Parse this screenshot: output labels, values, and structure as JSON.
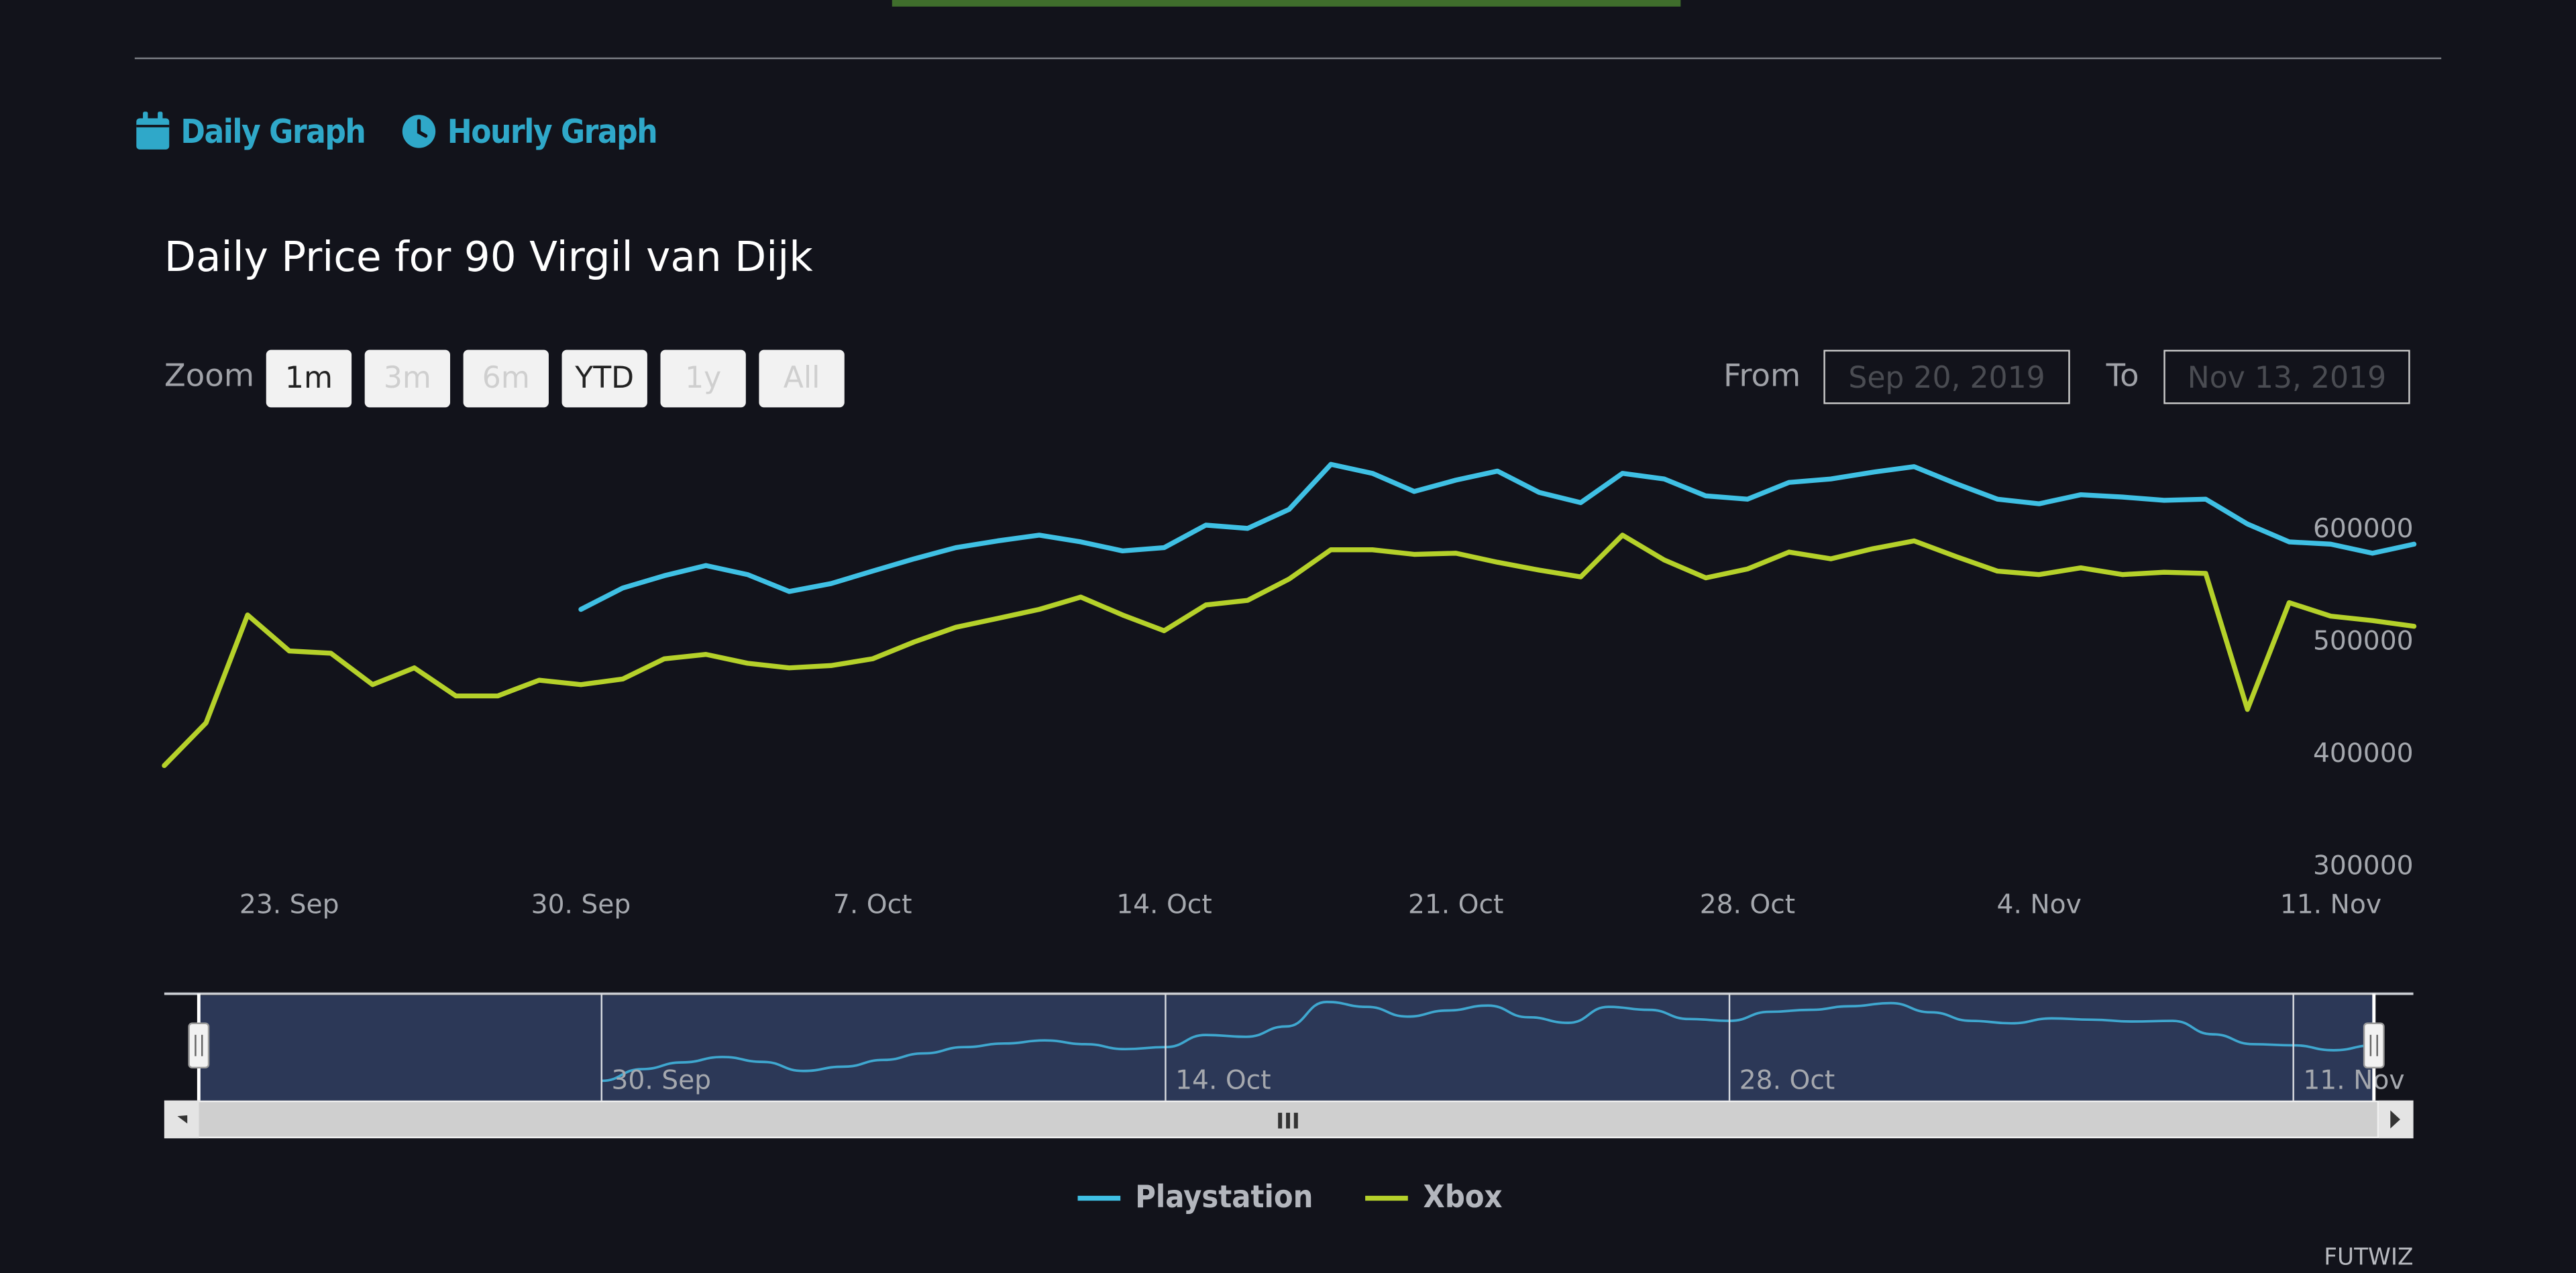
{
  "tabs": [
    {
      "label": "Daily Graph",
      "icon": "calendar-icon"
    },
    {
      "label": "Hourly Graph",
      "icon": "clock-icon"
    }
  ],
  "zoom": {
    "label": "Zoom",
    "buttons": [
      {
        "label": "1m",
        "enabled": true
      },
      {
        "label": "3m",
        "enabled": false
      },
      {
        "label": "6m",
        "enabled": false
      },
      {
        "label": "YTD",
        "enabled": true
      },
      {
        "label": "1y",
        "enabled": false
      },
      {
        "label": "All",
        "enabled": false
      }
    ]
  },
  "range": {
    "from_label": "From",
    "from_value": "Sep 20, 2019",
    "to_label": "To",
    "to_value": "Nov 13, 2019"
  },
  "navigator": {
    "labels": [
      "30. Sep",
      "14. Oct",
      "28. Oct",
      "11. Nov"
    ],
    "scroll_grip": "III"
  },
  "credit": "FUTWIZ",
  "colors": {
    "background": "#12131b",
    "accent": "#2fa8c9",
    "playstation": "#3fc0e4",
    "xbox": "#b5d12a",
    "navigator_fill": "#2c3857"
  },
  "chart_data": {
    "type": "line",
    "title": "Daily Price for 90 Virgil van Dijk",
    "x_axis_type": "date",
    "x_range": [
      "2019-09-20",
      "2019-11-13"
    ],
    "x_ticks": [
      {
        "date": "2019-09-23",
        "label": "23. Sep"
      },
      {
        "date": "2019-09-30",
        "label": "30. Sep"
      },
      {
        "date": "2019-10-07",
        "label": "7. Oct"
      },
      {
        "date": "2019-10-14",
        "label": "14. Oct"
      },
      {
        "date": "2019-10-21",
        "label": "21. Oct"
      },
      {
        "date": "2019-10-28",
        "label": "28. Oct"
      },
      {
        "date": "2019-11-04",
        "label": "4. Nov"
      },
      {
        "date": "2019-11-11",
        "label": "11. Nov"
      }
    ],
    "y_ticks": [
      300000,
      400000,
      500000,
      600000
    ],
    "ylim": [
      280000,
      660000
    ],
    "y_grid": false,
    "legend_position": "bottom-center",
    "series": [
      {
        "name": "Playstation",
        "color": "#3fc0e4",
        "points": [
          [
            "2019-09-30",
            527000
          ],
          [
            "2019-10-01",
            546000
          ],
          [
            "2019-10-02",
            557000
          ],
          [
            "2019-10-03",
            566000
          ],
          [
            "2019-10-04",
            558000
          ],
          [
            "2019-10-05",
            543000
          ],
          [
            "2019-10-06",
            550000
          ],
          [
            "2019-10-07",
            561000
          ],
          [
            "2019-10-08",
            572000
          ],
          [
            "2019-10-09",
            582000
          ],
          [
            "2019-10-10",
            588000
          ],
          [
            "2019-10-11",
            593000
          ],
          [
            "2019-10-12",
            587000
          ],
          [
            "2019-10-13",
            579000
          ],
          [
            "2019-10-14",
            582000
          ],
          [
            "2019-10-15",
            602000
          ],
          [
            "2019-10-16",
            599000
          ],
          [
            "2019-10-17",
            616000
          ],
          [
            "2019-10-18",
            656000
          ],
          [
            "2019-10-19",
            648000
          ],
          [
            "2019-10-20",
            632000
          ],
          [
            "2019-10-21",
            642000
          ],
          [
            "2019-10-22",
            650000
          ],
          [
            "2019-10-23",
            631000
          ],
          [
            "2019-10-24",
            622000
          ],
          [
            "2019-10-25",
            648000
          ],
          [
            "2019-10-26",
            643000
          ],
          [
            "2019-10-27",
            628000
          ],
          [
            "2019-10-28",
            625000
          ],
          [
            "2019-10-29",
            640000
          ],
          [
            "2019-10-30",
            643000
          ],
          [
            "2019-10-31",
            649000
          ],
          [
            "2019-11-01",
            654000
          ],
          [
            "2019-11-02",
            639000
          ],
          [
            "2019-11-03",
            625000
          ],
          [
            "2019-11-04",
            621000
          ],
          [
            "2019-11-05",
            629000
          ],
          [
            "2019-11-06",
            627000
          ],
          [
            "2019-11-07",
            624000
          ],
          [
            "2019-11-08",
            625000
          ],
          [
            "2019-11-09",
            603000
          ],
          [
            "2019-11-10",
            587000
          ],
          [
            "2019-11-11",
            585000
          ],
          [
            "2019-11-12",
            577000
          ],
          [
            "2019-11-13",
            585000
          ]
        ]
      },
      {
        "name": "Xbox",
        "color": "#b5d12a",
        "points": [
          [
            "2019-09-20",
            388000
          ],
          [
            "2019-09-21",
            426000
          ],
          [
            "2019-09-22",
            522000
          ],
          [
            "2019-09-23",
            490000
          ],
          [
            "2019-09-24",
            488000
          ],
          [
            "2019-09-25",
            460000
          ],
          [
            "2019-09-26",
            475000
          ],
          [
            "2019-09-27",
            450000
          ],
          [
            "2019-09-28",
            450000
          ],
          [
            "2019-09-29",
            464000
          ],
          [
            "2019-09-30",
            460000
          ],
          [
            "2019-10-01",
            465000
          ],
          [
            "2019-10-02",
            483000
          ],
          [
            "2019-10-03",
            487000
          ],
          [
            "2019-10-04",
            479000
          ],
          [
            "2019-10-05",
            475000
          ],
          [
            "2019-10-06",
            477000
          ],
          [
            "2019-10-07",
            483000
          ],
          [
            "2019-10-08",
            498000
          ],
          [
            "2019-10-09",
            511000
          ],
          [
            "2019-10-10",
            519000
          ],
          [
            "2019-10-11",
            527000
          ],
          [
            "2019-10-12",
            538000
          ],
          [
            "2019-10-13",
            522000
          ],
          [
            "2019-10-14",
            508000
          ],
          [
            "2019-10-15",
            531000
          ],
          [
            "2019-10-16",
            535000
          ],
          [
            "2019-10-17",
            554000
          ],
          [
            "2019-10-18",
            580000
          ],
          [
            "2019-10-19",
            580000
          ],
          [
            "2019-10-20",
            576000
          ],
          [
            "2019-10-21",
            577000
          ],
          [
            "2019-10-22",
            569000
          ],
          [
            "2019-10-23",
            562000
          ],
          [
            "2019-10-24",
            556000
          ],
          [
            "2019-10-25",
            593000
          ],
          [
            "2019-10-26",
            571000
          ],
          [
            "2019-10-27",
            555000
          ],
          [
            "2019-10-28",
            563000
          ],
          [
            "2019-10-29",
            578000
          ],
          [
            "2019-10-30",
            572000
          ],
          [
            "2019-10-31",
            581000
          ],
          [
            "2019-11-01",
            588000
          ],
          [
            "2019-11-02",
            574000
          ],
          [
            "2019-11-03",
            561000
          ],
          [
            "2019-11-04",
            558000
          ],
          [
            "2019-11-05",
            564000
          ],
          [
            "2019-11-06",
            558000
          ],
          [
            "2019-11-07",
            560000
          ],
          [
            "2019-11-08",
            559000
          ],
          [
            "2019-11-09",
            438000
          ],
          [
            "2019-11-10",
            533000
          ],
          [
            "2019-11-11",
            521000
          ],
          [
            "2019-11-12",
            517000
          ],
          [
            "2019-11-13",
            512000
          ]
        ]
      }
    ]
  }
}
